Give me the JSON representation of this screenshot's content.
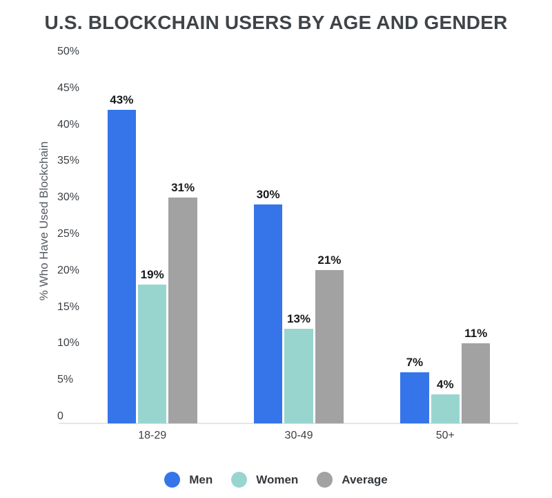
{
  "title": "U.S. BLOCKCHAIN USERS BY AGE AND GENDER",
  "chart_data": {
    "type": "bar",
    "title": "U.S. BLOCKCHAIN USERS BY AGE AND GENDER",
    "categories": [
      "18-29",
      "30-49",
      "50+"
    ],
    "series": [
      {
        "name": "Men",
        "color": "#3575e9",
        "values": [
          43,
          30,
          7
        ]
      },
      {
        "name": "Women",
        "color": "#99d5cf",
        "values": [
          19,
          13,
          4
        ]
      },
      {
        "name": "Average",
        "color": "#a2a2a2",
        "values": [
          31,
          21,
          11
        ]
      }
    ],
    "xlabel": "",
    "ylabel": "% Who Have Used Blockchain",
    "ylim": [
      0,
      50
    ],
    "yticks": [
      "0",
      "5%",
      "10%",
      "15%",
      "20%",
      "25%",
      "30%",
      "35%",
      "40%",
      "45%",
      "50%"
    ],
    "value_label_suffix": "%",
    "grid": false,
    "legend_position": "bottom",
    "colors": {
      "title_text": "#3f4449",
      "tick_text": "#3c4044",
      "value_label_text": "#17191c",
      "axis_line": "#e6e6e6",
      "background": "#ffffff"
    }
  }
}
